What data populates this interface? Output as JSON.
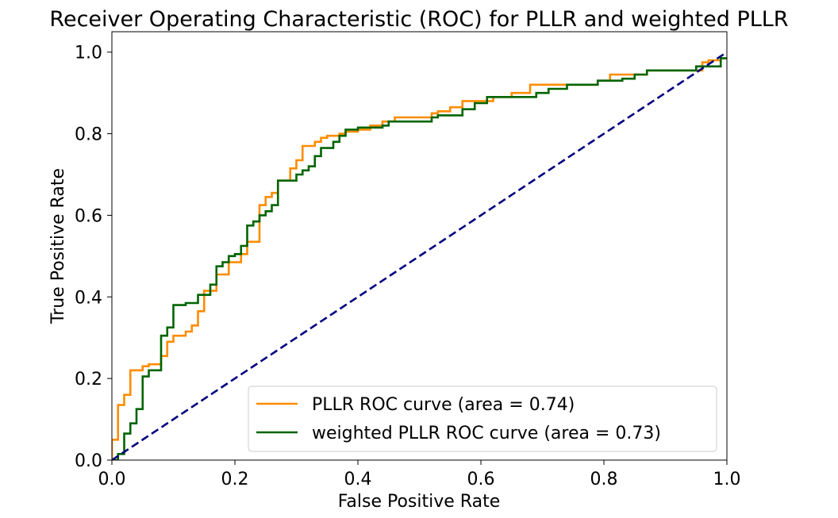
{
  "chart_data": {
    "type": "line",
    "title": "Receiver Operating Characteristic (ROC) for PLLR and weighted PLLR",
    "xlabel": "False Positive Rate",
    "ylabel": "True Positive Rate",
    "xlim": [
      0.0,
      1.0
    ],
    "ylim": [
      0.0,
      1.05
    ],
    "xticks": [
      "0.0",
      "0.2",
      "0.4",
      "0.6",
      "0.8",
      "1.0"
    ],
    "yticks": [
      "0.0",
      "0.2",
      "0.4",
      "0.6",
      "0.8",
      "1.0"
    ],
    "grid": false,
    "legend_position": "lower-right",
    "series": [
      {
        "name": "PLLR ROC curve (area = 0.74)",
        "color": "#ff8c00",
        "style": "solid",
        "x": [
          0.0,
          0.0,
          0.01,
          0.01,
          0.02,
          0.02,
          0.03,
          0.03,
          0.05,
          0.05,
          0.06,
          0.06,
          0.08,
          0.08,
          0.09,
          0.09,
          0.1,
          0.1,
          0.12,
          0.12,
          0.13,
          0.13,
          0.14,
          0.14,
          0.15,
          0.15,
          0.17,
          0.17,
          0.19,
          0.19,
          0.21,
          0.21,
          0.22,
          0.22,
          0.24,
          0.24,
          0.25,
          0.25,
          0.26,
          0.26,
          0.27,
          0.27,
          0.29,
          0.29,
          0.3,
          0.3,
          0.31,
          0.31,
          0.33,
          0.33,
          0.34,
          0.34,
          0.35,
          0.35,
          0.37,
          0.37,
          0.38,
          0.38,
          0.4,
          0.4,
          0.42,
          0.42,
          0.44,
          0.44,
          0.46,
          0.46,
          0.52,
          0.52,
          0.53,
          0.53,
          0.55,
          0.55,
          0.57,
          0.57,
          0.62,
          0.62,
          0.65,
          0.65,
          0.68,
          0.68,
          0.79,
          0.79,
          0.81,
          0.81,
          0.87,
          0.87,
          0.96,
          0.96,
          0.97,
          0.97,
          0.99,
          0.99,
          1.0
        ],
        "y": [
          0.0,
          0.05,
          0.05,
          0.135,
          0.135,
          0.16,
          0.16,
          0.22,
          0.22,
          0.23,
          0.23,
          0.235,
          0.235,
          0.255,
          0.255,
          0.29,
          0.29,
          0.305,
          0.305,
          0.315,
          0.315,
          0.33,
          0.33,
          0.365,
          0.365,
          0.415,
          0.415,
          0.455,
          0.455,
          0.485,
          0.485,
          0.505,
          0.505,
          0.535,
          0.535,
          0.625,
          0.625,
          0.645,
          0.645,
          0.655,
          0.655,
          0.685,
          0.685,
          0.715,
          0.715,
          0.735,
          0.735,
          0.77,
          0.77,
          0.78,
          0.78,
          0.79,
          0.79,
          0.795,
          0.795,
          0.8,
          0.8,
          0.805,
          0.805,
          0.81,
          0.81,
          0.82,
          0.82,
          0.83,
          0.83,
          0.84,
          0.84,
          0.85,
          0.85,
          0.855,
          0.855,
          0.865,
          0.865,
          0.88,
          0.88,
          0.89,
          0.89,
          0.9,
          0.9,
          0.92,
          0.92,
          0.93,
          0.93,
          0.945,
          0.945,
          0.955,
          0.955,
          0.975,
          0.975,
          0.98,
          0.98,
          0.985,
          0.985
        ]
      },
      {
        "name": "weighted PLLR ROC curve (area = 0.73)",
        "color": "#006400",
        "style": "solid",
        "x": [
          0.0,
          0.01,
          0.01,
          0.02,
          0.02,
          0.03,
          0.03,
          0.04,
          0.04,
          0.05,
          0.05,
          0.06,
          0.06,
          0.08,
          0.08,
          0.09,
          0.09,
          0.1,
          0.1,
          0.12,
          0.12,
          0.14,
          0.14,
          0.16,
          0.16,
          0.17,
          0.17,
          0.18,
          0.18,
          0.19,
          0.19,
          0.2,
          0.2,
          0.21,
          0.21,
          0.22,
          0.22,
          0.23,
          0.23,
          0.24,
          0.24,
          0.25,
          0.25,
          0.26,
          0.26,
          0.27,
          0.27,
          0.3,
          0.3,
          0.31,
          0.31,
          0.32,
          0.32,
          0.33,
          0.33,
          0.34,
          0.34,
          0.36,
          0.36,
          0.37,
          0.37,
          0.38,
          0.38,
          0.4,
          0.4,
          0.44,
          0.44,
          0.45,
          0.45,
          0.52,
          0.52,
          0.53,
          0.53,
          0.57,
          0.57,
          0.59,
          0.59,
          0.61,
          0.61,
          0.69,
          0.69,
          0.71,
          0.71,
          0.74,
          0.74,
          0.79,
          0.79,
          0.83,
          0.83,
          0.85,
          0.85,
          0.87,
          0.87,
          0.95,
          0.95,
          0.99,
          0.99,
          1.0
        ],
        "y": [
          0.0,
          0.0,
          0.015,
          0.015,
          0.065,
          0.065,
          0.09,
          0.09,
          0.125,
          0.125,
          0.205,
          0.205,
          0.22,
          0.22,
          0.305,
          0.305,
          0.325,
          0.325,
          0.38,
          0.38,
          0.385,
          0.385,
          0.405,
          0.405,
          0.43,
          0.43,
          0.475,
          0.475,
          0.485,
          0.485,
          0.5,
          0.5,
          0.505,
          0.505,
          0.525,
          0.525,
          0.575,
          0.575,
          0.585,
          0.585,
          0.6,
          0.6,
          0.61,
          0.61,
          0.625,
          0.625,
          0.685,
          0.685,
          0.7,
          0.7,
          0.71,
          0.71,
          0.72,
          0.72,
          0.745,
          0.745,
          0.765,
          0.765,
          0.78,
          0.78,
          0.795,
          0.795,
          0.81,
          0.81,
          0.815,
          0.815,
          0.82,
          0.82,
          0.83,
          0.83,
          0.84,
          0.84,
          0.845,
          0.845,
          0.86,
          0.86,
          0.875,
          0.875,
          0.89,
          0.89,
          0.9,
          0.9,
          0.91,
          0.91,
          0.92,
          0.92,
          0.93,
          0.93,
          0.935,
          0.935,
          0.945,
          0.945,
          0.955,
          0.955,
          0.965,
          0.965,
          0.985,
          0.985
        ]
      },
      {
        "name": "",
        "color": "#000080",
        "style": "dashed",
        "x": [
          0.0,
          1.0
        ],
        "y": [
          0.0,
          1.0
        ]
      }
    ]
  }
}
